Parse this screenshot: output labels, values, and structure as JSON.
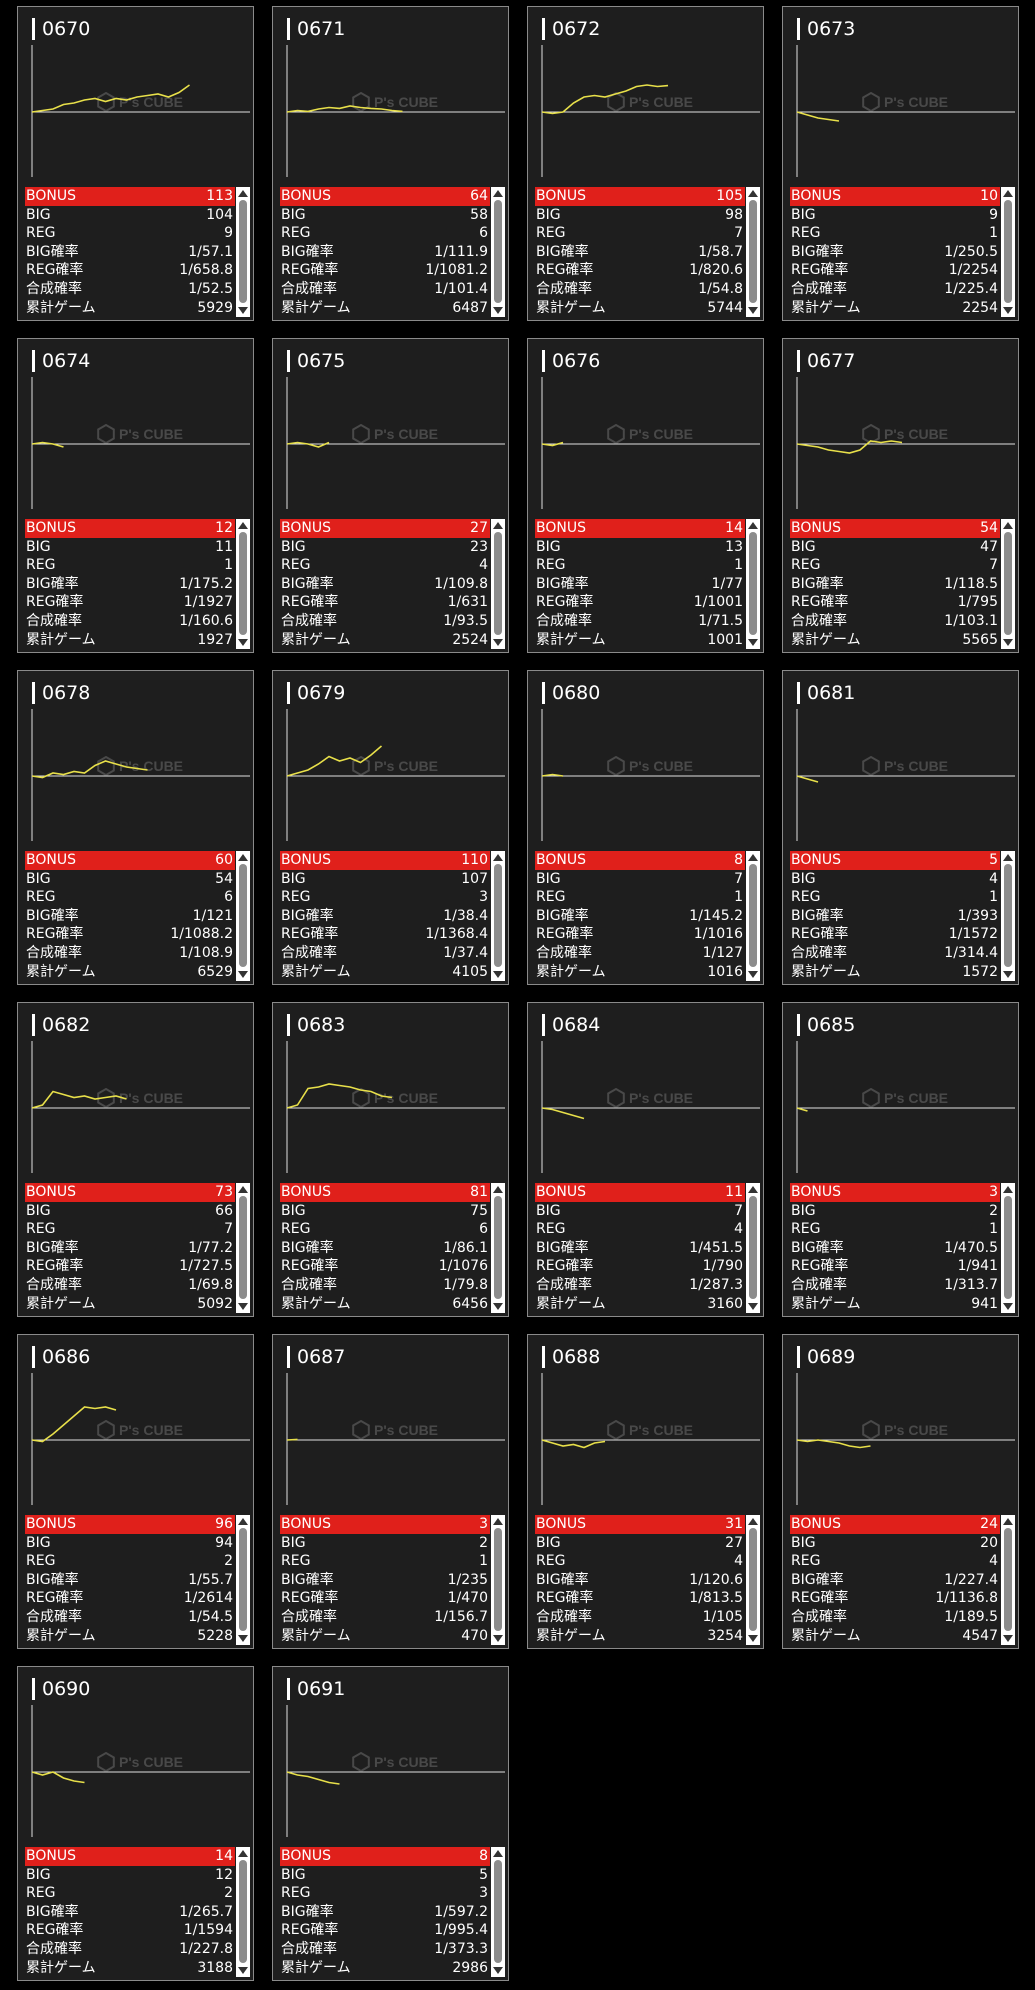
{
  "labels": {
    "bonus": "BONUS",
    "big": "BIG",
    "reg": "REG",
    "big_rate": "BIG確率",
    "reg_rate": "REG確率",
    "combined_rate": "合成確率",
    "total_games": "累計ゲーム",
    "watermark": "P's CUBE"
  },
  "colors": {
    "accent": "#e0201b",
    "graph_line": "#e8e04a",
    "card_bg": "#1e1e1e",
    "border": "#8a8a8a"
  },
  "machines": [
    {
      "id": "0670",
      "bonus": "113",
      "big": "104",
      "reg": "9",
      "big_rate": "1/57.1",
      "reg_rate": "1/658.8",
      "combined_rate": "1/52.5",
      "total_games": "5929",
      "trend": [
        0,
        0.05,
        0.1,
        0.25,
        0.3,
        0.4,
        0.45,
        0.35,
        0.45,
        0.4,
        0.5,
        0.55,
        0.6,
        0.5,
        0.65,
        0.9
      ]
    },
    {
      "id": "0671",
      "bonus": "64",
      "big": "58",
      "reg": "6",
      "big_rate": "1/111.9",
      "reg_rate": "1/1081.2",
      "combined_rate": "1/101.4",
      "total_games": "6487",
      "trend": [
        0,
        0.05,
        0.02,
        0.1,
        0.15,
        0.12,
        0.2,
        0.15,
        0.12,
        0.1,
        0.05,
        0.02
      ]
    },
    {
      "id": "0672",
      "bonus": "105",
      "big": "98",
      "reg": "7",
      "big_rate": "1/58.7",
      "reg_rate": "1/820.6",
      "combined_rate": "1/54.8",
      "total_games": "5744",
      "trend": [
        0,
        -0.05,
        0,
        0.3,
        0.5,
        0.55,
        0.5,
        0.6,
        0.7,
        0.85,
        0.9,
        0.85,
        0.88
      ]
    },
    {
      "id": "0673",
      "bonus": "10",
      "big": "9",
      "reg": "1",
      "big_rate": "1/250.5",
      "reg_rate": "1/2254",
      "combined_rate": "1/225.4",
      "total_games": "2254",
      "trend": [
        0,
        -0.1,
        -0.2,
        -0.25,
        -0.3
      ]
    },
    {
      "id": "0674",
      "bonus": "12",
      "big": "11",
      "reg": "1",
      "big_rate": "1/175.2",
      "reg_rate": "1/1927",
      "combined_rate": "1/160.6",
      "total_games": "1927",
      "trend": [
        0,
        0.05,
        0,
        -0.1
      ]
    },
    {
      "id": "0675",
      "bonus": "27",
      "big": "23",
      "reg": "4",
      "big_rate": "1/109.8",
      "reg_rate": "1/631",
      "combined_rate": "1/93.5",
      "total_games": "2524",
      "trend": [
        0,
        0.05,
        0,
        -0.1,
        0.05
      ]
    },
    {
      "id": "0676",
      "bonus": "14",
      "big": "13",
      "reg": "1",
      "big_rate": "1/77",
      "reg_rate": "1/1001",
      "combined_rate": "1/71.5",
      "total_games": "1001",
      "trend": [
        0,
        -0.05,
        0.05
      ]
    },
    {
      "id": "0677",
      "bonus": "54",
      "big": "47",
      "reg": "7",
      "big_rate": "1/118.5",
      "reg_rate": "1/795",
      "combined_rate": "1/103.1",
      "total_games": "5565",
      "trend": [
        0,
        -0.05,
        -0.1,
        -0.2,
        -0.25,
        -0.3,
        -0.2,
        0.1,
        0.05,
        0.1,
        0.05
      ]
    },
    {
      "id": "0678",
      "bonus": "60",
      "big": "54",
      "reg": "6",
      "big_rate": "1/121",
      "reg_rate": "1/1088.2",
      "combined_rate": "1/108.9",
      "total_games": "6529",
      "trend": [
        0,
        -0.05,
        0.1,
        0.05,
        0.15,
        0.1,
        0.35,
        0.5,
        0.4,
        0.3,
        0.25,
        0.2
      ]
    },
    {
      "id": "0679",
      "bonus": "110",
      "big": "107",
      "reg": "3",
      "big_rate": "1/38.4",
      "reg_rate": "1/1368.4",
      "combined_rate": "1/37.4",
      "total_games": "4105",
      "trend": [
        0,
        0.1,
        0.2,
        0.4,
        0.65,
        0.5,
        0.6,
        0.45,
        0.7,
        1.0
      ]
    },
    {
      "id": "0680",
      "bonus": "8",
      "big": "7",
      "reg": "1",
      "big_rate": "1/145.2",
      "reg_rate": "1/1016",
      "combined_rate": "1/127",
      "total_games": "1016",
      "trend": [
        0,
        0.05,
        0
      ]
    },
    {
      "id": "0681",
      "bonus": "5",
      "big": "4",
      "reg": "1",
      "big_rate": "1/393",
      "reg_rate": "1/1572",
      "combined_rate": "1/314.4",
      "total_games": "1572",
      "trend": [
        0,
        -0.1,
        -0.2
      ]
    },
    {
      "id": "0682",
      "bonus": "73",
      "big": "66",
      "reg": "7",
      "big_rate": "1/77.2",
      "reg_rate": "1/727.5",
      "combined_rate": "1/69.8",
      "total_games": "5092",
      "trend": [
        0,
        0.1,
        0.55,
        0.45,
        0.35,
        0.4,
        0.3,
        0.35,
        0.4,
        0.3
      ]
    },
    {
      "id": "0683",
      "bonus": "81",
      "big": "75",
      "reg": "6",
      "big_rate": "1/86.1",
      "reg_rate": "1/1076",
      "combined_rate": "1/79.8",
      "total_games": "6456",
      "trend": [
        0,
        0.1,
        0.65,
        0.7,
        0.8,
        0.75,
        0.7,
        0.6,
        0.55,
        0.4,
        0.35
      ]
    },
    {
      "id": "0684",
      "bonus": "11",
      "big": "7",
      "reg": "4",
      "big_rate": "1/451.5",
      "reg_rate": "1/790",
      "combined_rate": "1/287.3",
      "total_games": "3160",
      "trend": [
        0,
        -0.05,
        -0.15,
        -0.25,
        -0.35
      ]
    },
    {
      "id": "0685",
      "bonus": "3",
      "big": "2",
      "reg": "1",
      "big_rate": "1/470.5",
      "reg_rate": "1/941",
      "combined_rate": "1/313.7",
      "total_games": "941",
      "trend": [
        0,
        -0.1
      ]
    },
    {
      "id": "0686",
      "bonus": "96",
      "big": "94",
      "reg": "2",
      "big_rate": "1/55.7",
      "reg_rate": "1/2614",
      "combined_rate": "1/54.5",
      "total_games": "5228",
      "trend": [
        0,
        -0.05,
        0.2,
        0.5,
        0.8,
        1.1,
        1.05,
        1.1,
        1.0
      ]
    },
    {
      "id": "0687",
      "bonus": "3",
      "big": "2",
      "reg": "1",
      "big_rate": "1/235",
      "reg_rate": "1/470",
      "combined_rate": "1/156.7",
      "total_games": "470",
      "trend": [
        0,
        0.02
      ]
    },
    {
      "id": "0688",
      "bonus": "31",
      "big": "27",
      "reg": "4",
      "big_rate": "1/120.6",
      "reg_rate": "1/813.5",
      "combined_rate": "1/105",
      "total_games": "3254",
      "trend": [
        0,
        -0.1,
        -0.2,
        -0.15,
        -0.25,
        -0.1,
        -0.05
      ]
    },
    {
      "id": "0689",
      "bonus": "24",
      "big": "20",
      "reg": "4",
      "big_rate": "1/227.4",
      "reg_rate": "1/1136.8",
      "combined_rate": "1/189.5",
      "total_games": "4547",
      "trend": [
        0,
        -0.05,
        0,
        -0.05,
        -0.1,
        -0.2,
        -0.25,
        -0.2
      ]
    },
    {
      "id": "0690",
      "bonus": "14",
      "big": "12",
      "reg": "2",
      "big_rate": "1/265.7",
      "reg_rate": "1/1594",
      "combined_rate": "1/227.8",
      "total_games": "3188",
      "trend": [
        0,
        -0.1,
        0,
        -0.2,
        -0.3,
        -0.35
      ]
    },
    {
      "id": "0691",
      "bonus": "8",
      "big": "5",
      "reg": "3",
      "big_rate": "1/597.2",
      "reg_rate": "1/995.4",
      "combined_rate": "1/373.3",
      "total_games": "2986",
      "trend": [
        0,
        -0.1,
        -0.15,
        -0.25,
        -0.35,
        -0.4
      ]
    }
  ]
}
